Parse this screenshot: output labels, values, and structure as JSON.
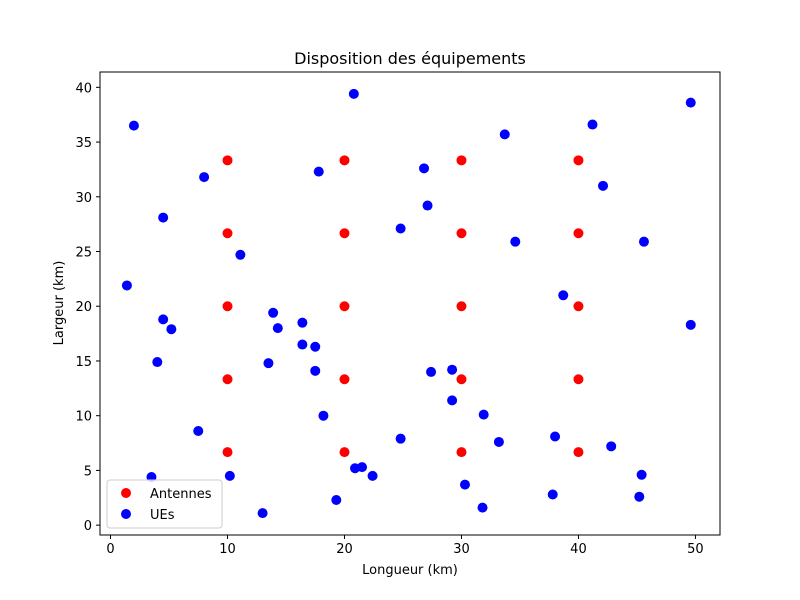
{
  "chart_data": {
    "type": "scatter",
    "title": "Disposition des équipements",
    "xlabel": "Longueur (km)",
    "ylabel": "Largeur (km)",
    "xlim": [
      -0.9,
      52.1
    ],
    "ylim": [
      -0.9,
      41.4
    ],
    "xticks": [
      0,
      10,
      20,
      30,
      40,
      50
    ],
    "yticks": [
      0,
      5,
      10,
      15,
      20,
      25,
      30,
      35,
      40
    ],
    "grid": false,
    "legend": "lower-left",
    "series": [
      {
        "name": "Antennes",
        "color": "#ff0000",
        "points": [
          [
            10,
            6.67
          ],
          [
            10,
            13.33
          ],
          [
            10,
            20
          ],
          [
            10,
            26.67
          ],
          [
            10,
            33.33
          ],
          [
            20,
            6.67
          ],
          [
            20,
            13.33
          ],
          [
            20,
            20
          ],
          [
            20,
            26.67
          ],
          [
            20,
            33.33
          ],
          [
            30,
            6.67
          ],
          [
            30,
            13.33
          ],
          [
            30,
            20
          ],
          [
            30,
            26.67
          ],
          [
            30,
            33.33
          ],
          [
            40,
            6.67
          ],
          [
            40,
            13.33
          ],
          [
            40,
            20
          ],
          [
            40,
            26.67
          ],
          [
            40,
            33.33
          ]
        ]
      },
      {
        "name": "UEs",
        "color": "#0000ff",
        "points": [
          [
            2.0,
            36.5
          ],
          [
            20.8,
            39.4
          ],
          [
            49.6,
            38.6
          ],
          [
            41.2,
            36.6
          ],
          [
            33.7,
            35.7
          ],
          [
            8.0,
            31.8
          ],
          [
            17.8,
            32.3
          ],
          [
            26.8,
            32.6
          ],
          [
            42.1,
            31.0
          ],
          [
            27.1,
            29.2
          ],
          [
            4.5,
            28.1
          ],
          [
            24.8,
            27.1
          ],
          [
            11.1,
            24.7
          ],
          [
            34.6,
            25.9
          ],
          [
            45.6,
            25.9
          ],
          [
            1.4,
            21.9
          ],
          [
            38.7,
            21.0
          ],
          [
            13.9,
            19.4
          ],
          [
            4.5,
            18.8
          ],
          [
            16.4,
            18.5
          ],
          [
            5.2,
            17.9
          ],
          [
            14.3,
            18.0
          ],
          [
            49.6,
            18.3
          ],
          [
            16.4,
            16.5
          ],
          [
            17.5,
            16.3
          ],
          [
            4.0,
            14.9
          ],
          [
            13.5,
            14.8
          ],
          [
            17.5,
            14.1
          ],
          [
            27.4,
            14.0
          ],
          [
            29.2,
            14.2
          ],
          [
            29.2,
            11.4
          ],
          [
            31.9,
            10.1
          ],
          [
            18.2,
            10.0
          ],
          [
            7.5,
            8.6
          ],
          [
            24.8,
            7.9
          ],
          [
            33.2,
            7.6
          ],
          [
            38.0,
            8.1
          ],
          [
            42.8,
            7.2
          ],
          [
            21.5,
            5.3
          ],
          [
            20.9,
            5.2
          ],
          [
            22.4,
            4.5
          ],
          [
            10.2,
            4.5
          ],
          [
            3.5,
            4.4
          ],
          [
            30.3,
            3.7
          ],
          [
            45.4,
            4.6
          ],
          [
            37.8,
            2.8
          ],
          [
            45.2,
            2.6
          ],
          [
            19.3,
            2.3
          ],
          [
            31.8,
            1.6
          ],
          [
            13.0,
            1.1
          ]
        ]
      }
    ]
  }
}
